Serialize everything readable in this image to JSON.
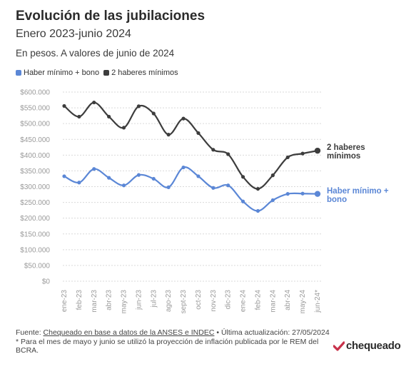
{
  "header": {
    "title": "Evolución de las jubilaciones",
    "subtitle": "Enero 2023-junio 2024",
    "note": "En pesos. A valores de junio de 2024"
  },
  "legend": {
    "item1": "Haber mínimo + bono",
    "item2": "2 haberes mínimos"
  },
  "labels": {
    "series2_line1": "2 haberes",
    "series2_line2": "mínimos",
    "series1_line1": "Haber mínimo +",
    "series1_line2": "bono"
  },
  "footer": {
    "source_prefix": "Fuente: ",
    "source_link": "Chequeado en base a datos de la ANSES e INDEC",
    "source_rest": " • Última actualización: 27/05/2024",
    "footnote": "* Para el mes de mayo y junio se utilizó la proyección de inflación publicada por le REM del BCRA."
  },
  "logo": {
    "text": "chequeado"
  },
  "colors": {
    "series1": "#5b87d6",
    "series2": "#3d3d3d",
    "grid": "#d9d9d9",
    "axis_text": "#9a9a9a",
    "logo_accent": "#c8314a"
  },
  "chart_data": {
    "type": "line",
    "title": "Evolución de las jubilaciones",
    "categories": [
      "ene-23",
      "feb-23",
      "mar-23",
      "abr-23",
      "may-23",
      "jun-23",
      "jul-23",
      "ago-23",
      "sept-23",
      "oct-23",
      "nov-23",
      "dic-23",
      "ene-24",
      "feb-24",
      "mar-24",
      "abr-24",
      "may-24",
      "jun-24*"
    ],
    "yticks": [
      "$600.000",
      "$550.000",
      "$500.000",
      "$450.000",
      "$400.000",
      "$350.000",
      "$300.000",
      "$250.000",
      "$200.000",
      "$150.000",
      "$100.000",
      "$50.000",
      "$0"
    ],
    "ylim": [
      0,
      600000
    ],
    "grid": true,
    "legend_position": "top-left",
    "series": [
      {
        "name": "Haber mínimo + bono",
        "color": "#5b87d6",
        "values": [
          333000,
          313000,
          356000,
          328000,
          304000,
          337000,
          325000,
          298000,
          361000,
          333000,
          296000,
          304000,
          253000,
          223000,
          257000,
          277000,
          278000,
          277000
        ]
      },
      {
        "name": "2 haberes mínimos",
        "color": "#3d3d3d",
        "values": [
          556000,
          522000,
          567000,
          522000,
          487000,
          555000,
          532000,
          465000,
          516000,
          470000,
          417000,
          403000,
          331000,
          293000,
          336000,
          393000,
          405000,
          414000
        ]
      }
    ]
  }
}
